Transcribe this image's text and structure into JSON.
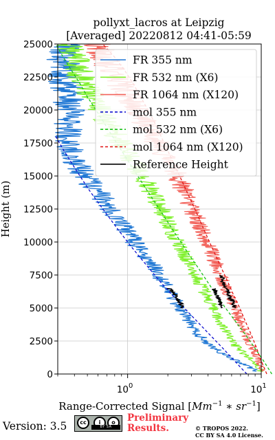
{
  "chart_data": {
    "type": "line",
    "title": [
      "pollyxt_lacros at Leipzig",
      "[Averaged] 20220812 04:41-05:59"
    ],
    "xlabel_prefix": "Range-Corrected Signal [",
    "xlabel_math": "Mm",
    "xlabel_exp1": "−1",
    "xlabel_mid": " ∗ ",
    "xlabel_math2": "sr",
    "xlabel_exp2": "−1",
    "xlabel_suffix": "]",
    "ylabel": "Height (m)",
    "xscale": "log",
    "xlim": [
      0.3,
      10
    ],
    "ylim": [
      0,
      25000
    ],
    "grid": true,
    "legend_placement": "top-right",
    "x_ticks": [
      {
        "base": "10",
        "exp": "0",
        "value": 1
      },
      {
        "base": "10",
        "exp": "1",
        "value": 10
      }
    ],
    "y_ticks": [
      0,
      2500,
      5000,
      7500,
      10000,
      12500,
      15000,
      17500,
      20000,
      22500,
      25000
    ],
    "y_tick_labels": [
      "0",
      "2500",
      "5000",
      "7500",
      "10000",
      "12500",
      "15000",
      "17500",
      "20000",
      "22500",
      "25000"
    ],
    "series": [
      {
        "name": "FR 355 nm",
        "color": "#1f77d4",
        "style": "solid",
        "y": [
          200,
          400,
          700,
          1000,
          1500,
          2000,
          2500,
          3000,
          3500,
          4000,
          4500,
          5000,
          5500,
          6000,
          6500,
          7000,
          7500,
          8000,
          8500,
          9000,
          9500,
          10000,
          10500,
          11000,
          11500,
          12000,
          12500,
          13000,
          13500,
          14000,
          14500,
          15000,
          15500,
          16000,
          17000,
          18000,
          19000,
          20000,
          21000,
          22000,
          23000,
          24000,
          25000
        ],
        "x": [
          9.0,
          8.5,
          7.5,
          6.5,
          5.2,
          4.3,
          3.8,
          3.4,
          3.1,
          2.9,
          2.65,
          2.45,
          2.3,
          2.15,
          1.98,
          1.85,
          1.72,
          1.6,
          1.45,
          1.35,
          1.22,
          1.12,
          1.05,
          0.97,
          0.88,
          0.8,
          0.74,
          0.68,
          0.63,
          0.58,
          0.52,
          0.47,
          0.44,
          0.41,
          0.38,
          0.36,
          0.36,
          0.37,
          0.36,
          0.34,
          0.35,
          0.33,
          0.34
        ]
      },
      {
        "name": "FR 532 nm (X6)",
        "color": "#7ef02a",
        "style": "solid",
        "y": [
          200,
          500,
          1000,
          1500,
          2000,
          2500,
          3000,
          3500,
          4000,
          4500,
          5000,
          5500,
          6000,
          6500,
          7000,
          7500,
          8000,
          8500,
          9000,
          9500,
          10000,
          10500,
          11000,
          11500,
          12000,
          12500,
          13000,
          13500,
          14000,
          14500,
          15000,
          15500,
          16000,
          17000,
          18000,
          19000,
          20000,
          21000,
          22000,
          23000,
          24000,
          25000
        ],
        "x": [
          10.0,
          9.5,
          8.6,
          7.5,
          6.6,
          6.0,
          5.6,
          5.2,
          4.9,
          4.6,
          4.35,
          4.1,
          3.85,
          3.65,
          3.45,
          3.25,
          3.05,
          2.85,
          2.7,
          2.55,
          2.4,
          2.25,
          2.12,
          2.0,
          1.88,
          1.77,
          1.67,
          1.57,
          1.48,
          1.4,
          1.3,
          1.2,
          1.1,
          0.95,
          0.82,
          0.72,
          0.62,
          0.55,
          0.48,
          0.43,
          0.4,
          0.37
        ]
      },
      {
        "name": "FR 1064 nm (X120)",
        "color": "#f2625a",
        "style": "solid",
        "y": [
          200,
          500,
          1000,
          1500,
          2000,
          2500,
          3000,
          3500,
          4000,
          4500,
          5000,
          5500,
          6000,
          6500,
          7000,
          7500,
          8000,
          8500,
          9000,
          9500,
          10000,
          10500,
          11000,
          11500,
          12000,
          12500,
          13000,
          13500,
          14000,
          14500,
          15000,
          15500,
          16000,
          17000,
          18000,
          19000,
          20000,
          21000,
          22000,
          23000,
          24000,
          25000
        ],
        "x": [
          10.0,
          9.8,
          9.5,
          9.0,
          8.6,
          8.0,
          7.7,
          7.3,
          6.9,
          6.6,
          6.35,
          6.05,
          5.75,
          5.5,
          5.2,
          5.0,
          4.75,
          4.5,
          4.3,
          4.1,
          3.9,
          3.7,
          3.5,
          3.35,
          3.2,
          3.05,
          2.9,
          2.75,
          2.6,
          2.5,
          2.35,
          2.2,
          2.05,
          1.8,
          1.55,
          1.35,
          1.18,
          1.02,
          0.88,
          0.76,
          0.66,
          0.58
        ]
      },
      {
        "name": "mol 355 nm",
        "color": "#1010d0",
        "style": "dashed",
        "y": [
          0,
          1000,
          2000,
          3000,
          4000,
          5000,
          6000,
          7000,
          8000,
          9000,
          10000,
          11000,
          12000,
          13000,
          14000,
          15000,
          16000,
          17000,
          18000
        ],
        "x": [
          7.8,
          6.3,
          5.1,
          4.1,
          3.3,
          2.65,
          2.15,
          1.75,
          1.45,
          1.2,
          1.0,
          0.84,
          0.71,
          0.6,
          0.51,
          0.44,
          0.38,
          0.33,
          0.29
        ]
      },
      {
        "name": "mol 532 nm (X6)",
        "color": "#18c018",
        "style": "dashed",
        "y": [
          0,
          1000,
          2000,
          3000,
          4000,
          5000,
          6000,
          7000,
          8000,
          9000,
          10000,
          11000,
          12000,
          13000,
          14000,
          15000,
          16000,
          17000,
          18000,
          19000,
          20000,
          21000,
          22000,
          23000,
          24000,
          25000
        ],
        "x": [
          12.0,
          10.4,
          8.9,
          7.6,
          6.4,
          5.4,
          4.6,
          3.95,
          3.4,
          2.9,
          2.5,
          2.15,
          1.86,
          1.6,
          1.38,
          1.19,
          1.03,
          0.89,
          0.77,
          0.67,
          0.58,
          0.5,
          0.44,
          0.38,
          0.33,
          0.29
        ]
      },
      {
        "name": "mol 1064 nm (X120)",
        "color": "#e01010",
        "style": "dashed",
        "y": [
          0,
          1000,
          2000,
          3000,
          4000,
          5000,
          6000,
          7000,
          8000,
          9000,
          10000,
          11000,
          12000,
          13000,
          14000,
          15000,
          16000,
          17000,
          18000,
          19000,
          20000,
          21000,
          22000,
          23000,
          24000,
          25000
        ],
        "x": [
          11.0,
          10.0,
          9.2,
          8.4,
          7.6,
          6.9,
          6.2,
          5.6,
          5.05,
          4.55,
          4.1,
          3.7,
          3.35,
          3.02,
          2.72,
          2.45,
          2.2,
          1.98,
          1.78,
          1.6,
          1.42,
          1.25,
          1.1,
          0.95,
          0.8,
          0.65
        ]
      },
      {
        "name": "Reference Height",
        "color": "#000000",
        "style": "solid",
        "segments": [
          {
            "y": [
              5000,
              5300,
              5600,
              5900,
              6200,
              6500
            ],
            "x": [
              2.62,
              2.52,
              2.4,
              2.3,
              2.15,
              2.03
            ]
          },
          {
            "y": [
              5000,
              5300,
              5600,
              5900,
              6200,
              6500
            ],
            "x": [
              5.1,
              4.95,
              4.85,
              4.7,
              4.55,
              4.4
            ]
          },
          {
            "y": [
              5000,
              5500,
              6000,
              6500,
              7000,
              7500
            ],
            "x": [
              6.35,
              6.1,
              5.75,
              5.5,
              5.2,
              5.0
            ]
          }
        ]
      }
    ]
  },
  "footer": {
    "version": "Version: 3.5",
    "cc_label": "BY    SA",
    "cc_icon_1": "cc",
    "cc_icon_2": "i",
    "cc_icon_3": "o",
    "prelim_line1": "Preliminary",
    "prelim_line2": "Results.",
    "copyright_line1": "© TROPOS 2022.",
    "copyright_line2": "CC BY SA 4.0 License."
  }
}
